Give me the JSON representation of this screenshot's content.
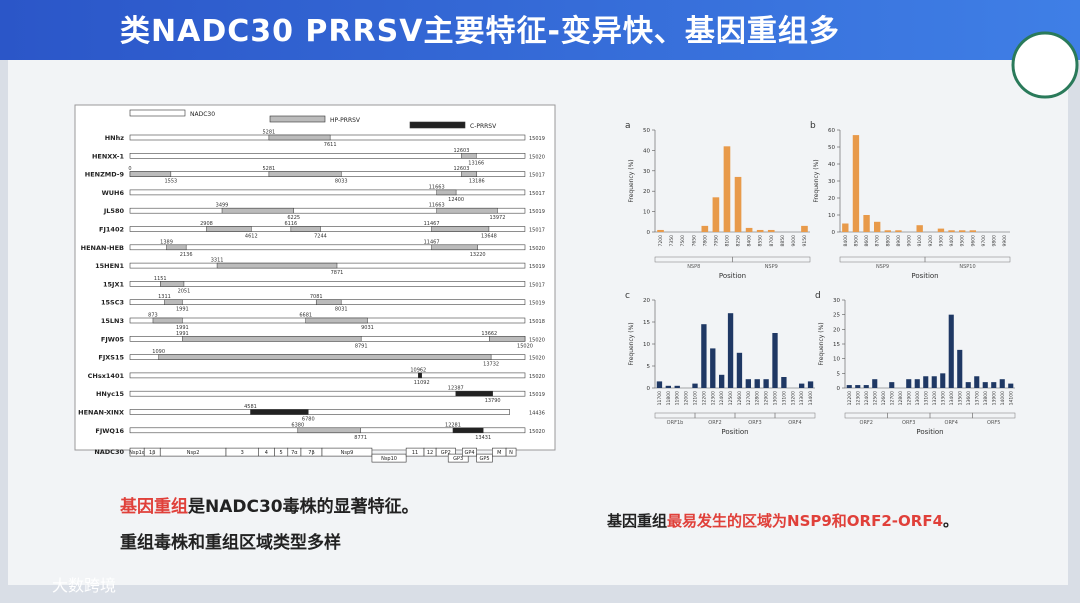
{
  "slide": {
    "title": "类NADC30 PRRSV主要特征-变异快、基因重组多",
    "left_note_1": [
      "基因重组",
      "是NADC30毒株的显著特征。"
    ],
    "left_note_2": "重组毒株和重组区域类型多样",
    "right_note": [
      "基因重组",
      "最易发生的区域为NSP9和ORF2-ORF4",
      "。"
    ],
    "watermark": "大数跨境"
  },
  "genome_diagram": {
    "legend": [
      "NADC30",
      "HP-PRRSV",
      "C-PRRSV"
    ],
    "xlim": [
      0,
      15020
    ],
    "strains": [
      {
        "name": "HNhz",
        "length": 15019,
        "hp": [
          [
            5281,
            7611
          ]
        ],
        "c": []
      },
      {
        "name": "HENXX-1",
        "length": 15020,
        "hp": [
          [
            12603,
            13166
          ]
        ],
        "c": []
      },
      {
        "name": "HENZMD-9",
        "length": 15017,
        "hp": [
          [
            0,
            1553
          ],
          [
            5281,
            8033
          ],
          [
            12603,
            13186
          ]
        ],
        "c": []
      },
      {
        "name": "WUH6",
        "length": 15017,
        "hp": [
          [
            11663,
            12400
          ]
        ],
        "c": []
      },
      {
        "name": "JL580",
        "length": 15019,
        "hp": [
          [
            3499,
            6225
          ],
          [
            11663,
            13972
          ]
        ],
        "c": []
      },
      {
        "name": "FJ1402",
        "length": 15017,
        "hp": [
          [
            2908,
            4612
          ],
          [
            6116,
            7244
          ],
          [
            11467,
            13648
          ]
        ],
        "c": []
      },
      {
        "name": "HENAN-HEB",
        "length": 15020,
        "hp": [
          [
            1389,
            2136
          ],
          [
            11467,
            13220
          ]
        ],
        "c": []
      },
      {
        "name": "15HEN1",
        "length": 15019,
        "hp": [
          [
            3311,
            7871
          ]
        ],
        "c": []
      },
      {
        "name": "15JX1",
        "length": 15017,
        "hp": [
          [
            1151,
            2051
          ]
        ],
        "c": []
      },
      {
        "name": "15SC3",
        "length": 15019,
        "hp": [
          [
            1311,
            1991
          ],
          [
            7081,
            8031
          ]
        ],
        "c": []
      },
      {
        "name": "15LN3",
        "length": 15018,
        "hp": [
          [
            873,
            1991
          ],
          [
            6681,
            9031
          ]
        ],
        "c": []
      },
      {
        "name": "FJW05",
        "length": 15020,
        "hp": [
          [
            1991,
            8791
          ],
          [
            13662,
            15020
          ]
        ],
        "c": []
      },
      {
        "name": "FJXS15",
        "length": 15020,
        "hp": [
          [
            1090,
            13732
          ]
        ],
        "c": []
      },
      {
        "name": "CHsx1401",
        "length": 15020,
        "hp": [],
        "c": [
          [
            10962,
            11092
          ]
        ]
      },
      {
        "name": "HNyc15",
        "length": 15019,
        "hp": [],
        "c": [
          [
            12387,
            13790
          ]
        ]
      },
      {
        "name": "HENAN-XINX",
        "length": 14436,
        "hp": [],
        "c": [
          [
            4581,
            6780
          ]
        ]
      },
      {
        "name": "FJWQ16",
        "length": 15020,
        "hp": [
          [
            6380,
            8771
          ]
        ],
        "c": [
          [
            12281,
            13431
          ]
        ]
      }
    ],
    "gene_row": "NADC30",
    "genes": [
      {
        "label": "Nsp1α",
        "start": 0,
        "end": 540
      },
      {
        "label": "1β",
        "start": 540,
        "end": 1150
      },
      {
        "label": "Nsp2",
        "start": 1150,
        "end": 3650
      },
      {
        "label": "3",
        "start": 3650,
        "end": 4880
      },
      {
        "label": "4",
        "start": 4880,
        "end": 5490
      },
      {
        "label": "5",
        "start": 5490,
        "end": 6000
      },
      {
        "label": "7α",
        "start": 6000,
        "end": 6500
      },
      {
        "label": "7β",
        "start": 6500,
        "end": 7300
      },
      {
        "label": "Nsp9",
        "start": 7300,
        "end": 9200
      },
      {
        "label": "Nsp10",
        "start": 9200,
        "end": 10500
      },
      {
        "label": "11",
        "start": 10500,
        "end": 11180
      },
      {
        "label": "12",
        "start": 11180,
        "end": 11640
      },
      {
        "label": "GP2",
        "start": 11640,
        "end": 12380
      },
      {
        "label": "GP3",
        "start": 12100,
        "end": 12860
      },
      {
        "label": "GP4",
        "start": 12640,
        "end": 13180
      },
      {
        "label": "GP5",
        "start": 13180,
        "end": 13780
      },
      {
        "label": "M",
        "start": 13780,
        "end": 14300
      },
      {
        "label": "N",
        "start": 14300,
        "end": 14680
      }
    ]
  },
  "panels": [
    {
      "type": "bar",
      "label": "a",
      "ylabel": "Frequency (%)",
      "xlabel": "Position",
      "color": "#e89a4a",
      "ylim": [
        0,
        50
      ],
      "yticks": [
        0,
        10,
        20,
        30,
        40,
        50
      ],
      "categories": [
        "7200",
        "7350",
        "7500",
        "7650",
        "7800",
        "7950",
        "8100",
        "8250",
        "8400",
        "8550",
        "8700",
        "8850",
        "9000",
        "9150"
      ],
      "values": [
        1,
        0,
        0,
        0,
        3,
        17,
        42,
        27,
        2,
        1,
        1,
        0,
        0,
        3
      ],
      "regions": [
        "NSP8",
        "NSP9"
      ]
    },
    {
      "type": "bar",
      "label": "b",
      "ylabel": "Frequency (%)",
      "xlabel": "Position",
      "color": "#e89a4a",
      "ylim": [
        0,
        60
      ],
      "yticks": [
        0,
        10,
        20,
        30,
        40,
        50,
        60
      ],
      "categories": [
        "8400",
        "8500",
        "8600",
        "8700",
        "8800",
        "8900",
        "9000",
        "9100",
        "9200",
        "9300",
        "9400",
        "9500",
        "9600",
        "9700",
        "9800",
        "9900"
      ],
      "values": [
        5,
        57,
        10,
        6,
        1,
        1,
        0,
        4,
        0,
        2,
        1,
        1,
        1,
        0,
        0,
        0
      ],
      "regions": [
        "NSP9",
        "NSP10"
      ]
    },
    {
      "type": "bar",
      "label": "c",
      "ylabel": "Frequency (%)",
      "xlabel": "Position",
      "color": "#1f3864",
      "ylim": [
        0,
        20
      ],
      "yticks": [
        0,
        5,
        10,
        15,
        20
      ],
      "categories": [
        "11700",
        "11800",
        "11900",
        "12000",
        "12100",
        "12200",
        "12300",
        "12400",
        "12500",
        "12600",
        "12700",
        "12800",
        "12900",
        "13000",
        "13100",
        "13200",
        "13300",
        "13400"
      ],
      "values": [
        1.5,
        0.5,
        0.5,
        0,
        1,
        14.5,
        9,
        3,
        17,
        8,
        2,
        2,
        2,
        12.5,
        2.5,
        0,
        1,
        1.5
      ],
      "regions": [
        "ORF1b",
        "ORF2",
        "ORF3",
        "ORF4"
      ]
    },
    {
      "type": "bar",
      "label": "d",
      "ylabel": "Frequency (%)",
      "xlabel": "Position",
      "color": "#1f3864",
      "ylim": [
        0,
        30
      ],
      "yticks": [
        0,
        5,
        10,
        15,
        20,
        25,
        30
      ],
      "categories": [
        "12200",
        "12300",
        "12400",
        "12500",
        "12600",
        "12700",
        "12800",
        "12900",
        "13000",
        "13100",
        "13200",
        "13300",
        "13400",
        "13500",
        "13600",
        "13700",
        "13800",
        "13900",
        "14000",
        "14100"
      ],
      "values": [
        1,
        1,
        1,
        3,
        0,
        2,
        0,
        3,
        3,
        4,
        4,
        5,
        25,
        13,
        2,
        4,
        2,
        2,
        3,
        1.5
      ],
      "regions": [
        "ORF2",
        "ORF3",
        "ORF4",
        "ORF5"
      ]
    }
  ]
}
